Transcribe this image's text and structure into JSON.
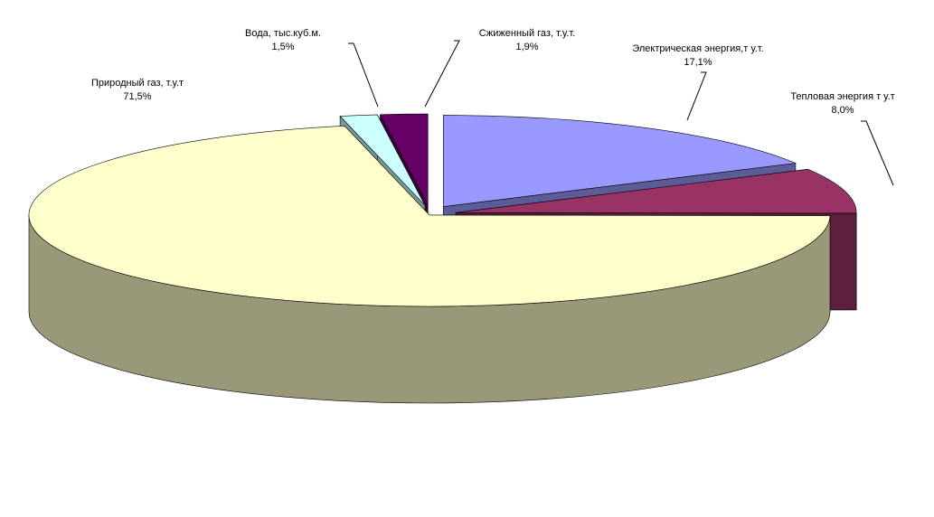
{
  "chart_data": {
    "type": "pie3d",
    "categories": [
      "Электрическая энергия,т у.т.",
      "Тепловая энергия т у.т",
      "Природный газ, т.у.т",
      "Вода, тыс.куб.м.",
      "Сжиженный газ, т.у.т."
    ],
    "values": [
      17.1,
      8.0,
      71.5,
      1.5,
      1.9
    ],
    "value_labels": [
      "17,1%",
      "8,0%",
      "71,5%",
      "1,5%",
      "1,9%"
    ],
    "colors": [
      "#9999ff",
      "#993366",
      "#ffffcc",
      "#ccffff",
      "#660066"
    ]
  }
}
